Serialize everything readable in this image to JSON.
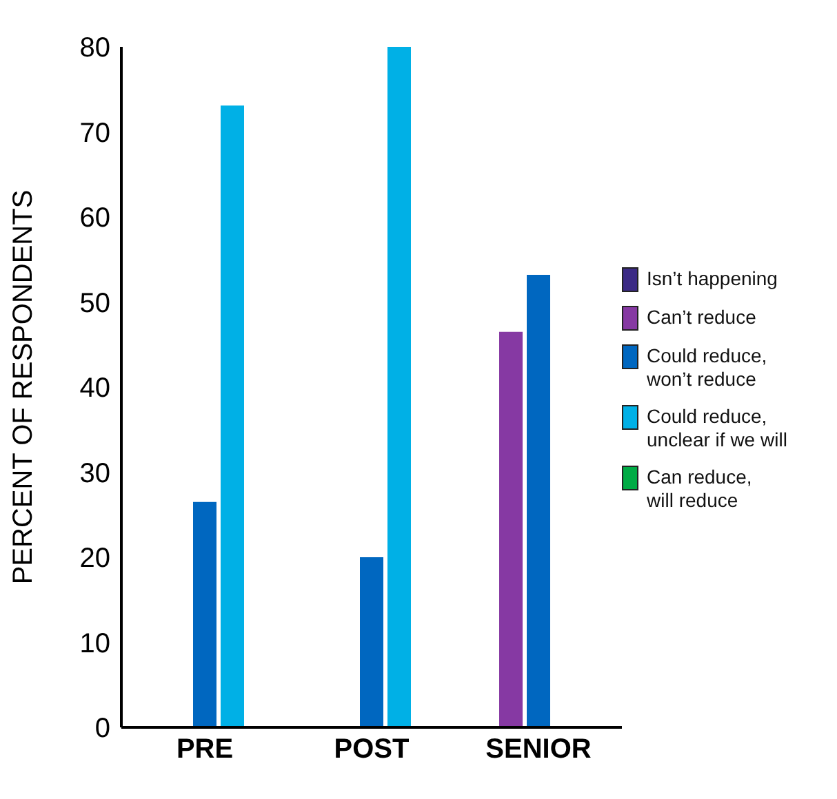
{
  "chart_data": {
    "type": "bar",
    "ylabel": "PERCENT OF RESPONDENTS",
    "categories": [
      "PRE",
      "POST",
      "SENIOR"
    ],
    "series": [
      {
        "name": "Isn’t happening",
        "color": "#3b2a85",
        "values": [
          null,
          null,
          null
        ]
      },
      {
        "name": "Can’t reduce",
        "color": "#8639a3",
        "values": [
          null,
          null,
          46.5
        ]
      },
      {
        "name": "Could reduce, won’t reduce",
        "color": "#0067c0",
        "values": [
          26.5,
          20,
          53.2
        ]
      },
      {
        "name": "Could reduce, unclear if we will",
        "color": "#00b0e6",
        "values": [
          73.1,
          80,
          null
        ]
      },
      {
        "name": "Can reduce, will reduce",
        "color": "#00ab45",
        "values": [
          null,
          null,
          null
        ]
      }
    ],
    "ylim": [
      0,
      80
    ],
    "yticks": [
      0,
      10,
      20,
      30,
      40,
      50,
      60,
      70,
      80
    ],
    "legend": "right"
  }
}
